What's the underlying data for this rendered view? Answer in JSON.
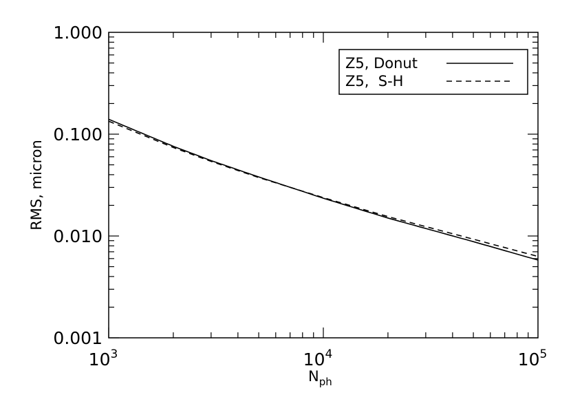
{
  "chart_data": {
    "type": "line",
    "title": "",
    "xlabel": "N",
    "xlabel_sub": "ph",
    "ylabel": "RMS, micron",
    "xscale": "log",
    "yscale": "log",
    "xlim": [
      1000,
      100000
    ],
    "ylim": [
      0.001,
      1.0
    ],
    "grid": false,
    "legend_position": "top-right",
    "x_ticks": [
      {
        "value": 1000,
        "base": "10",
        "exp": "3"
      },
      {
        "value": 10000,
        "base": "10",
        "exp": "4"
      },
      {
        "value": 100000,
        "base": "10",
        "exp": "5"
      }
    ],
    "y_ticks": [
      {
        "value": 0.001,
        "label": "0.001"
      },
      {
        "value": 0.01,
        "label": "0.010"
      },
      {
        "value": 0.1,
        "label": "0.100"
      },
      {
        "value": 1.0,
        "label": "1.000"
      }
    ],
    "x": [
      1000,
      2000,
      3000,
      5000,
      10000,
      20000,
      50000,
      100000
    ],
    "series": [
      {
        "name": "Z5, Donut",
        "style": "solid",
        "color": "#000000",
        "values": [
          0.14,
          0.076,
          0.055,
          0.038,
          0.0235,
          0.015,
          0.0088,
          0.0058
        ]
      },
      {
        "name": "Z5,  S-H",
        "style": "dashed",
        "color": "#000000",
        "values": [
          0.134,
          0.074,
          0.054,
          0.0375,
          0.0238,
          0.0155,
          0.0093,
          0.0063
        ]
      }
    ]
  }
}
